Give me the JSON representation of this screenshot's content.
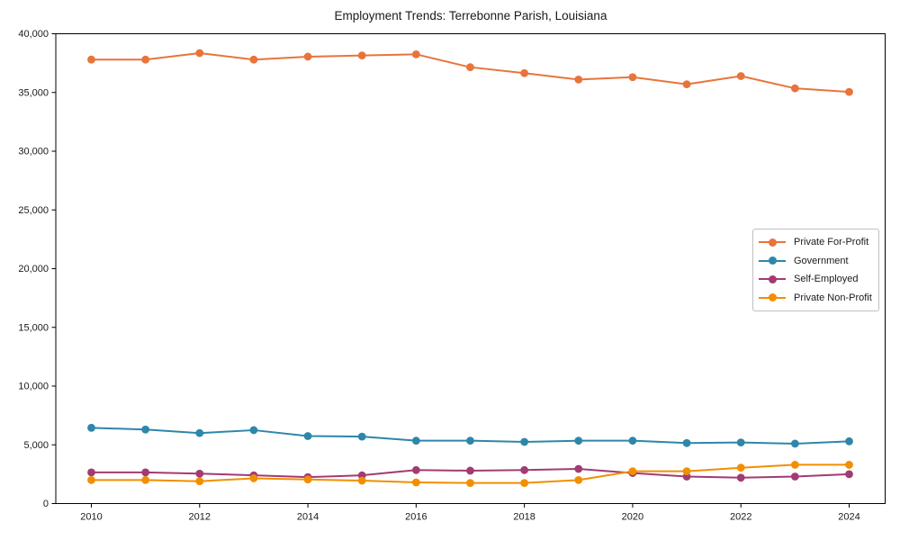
{
  "chart_data": {
    "type": "line",
    "title": "Employment Trends: Terrebonne Parish, Louisiana",
    "xlabel": "",
    "ylabel": "",
    "x": [
      2010,
      2011,
      2012,
      2013,
      2014,
      2015,
      2016,
      2017,
      2018,
      2019,
      2020,
      2021,
      2022,
      2023,
      2024
    ],
    "xtick_labels": [
      "2010",
      "2012",
      "2014",
      "2016",
      "2018",
      "2020",
      "2022",
      "2024"
    ],
    "xticks": [
      2010,
      2012,
      2014,
      2016,
      2018,
      2020,
      2022,
      2024
    ],
    "yticks": [
      0,
      5000,
      10000,
      15000,
      20000,
      25000,
      30000,
      35000,
      40000
    ],
    "ytick_labels": [
      "0",
      "5,000",
      "10,000",
      "15,000",
      "20,000",
      "25,000",
      "30,000",
      "35,000",
      "40,000"
    ],
    "ylim": [
      0,
      40000
    ],
    "xlim_pad_years": 0.657,
    "grid": false,
    "legend_position": "center right",
    "marker": "circle",
    "series": [
      {
        "name": "Private For-Profit",
        "color": "#E8743B",
        "values": [
          37800,
          37800,
          38350,
          37800,
          38050,
          38150,
          38250,
          37150,
          36650,
          36100,
          36300,
          35700,
          36400,
          35350,
          35050
        ]
      },
      {
        "name": "Government",
        "color": "#2E86AB",
        "values": [
          6450,
          6300,
          6000,
          6250,
          5750,
          5700,
          5350,
          5350,
          5250,
          5350,
          5350,
          5150,
          5200,
          5100,
          5300
        ]
      },
      {
        "name": "Self-Employed",
        "color": "#A23B72",
        "values": [
          2650,
          2650,
          2550,
          2400,
          2250,
          2400,
          2850,
          2800,
          2850,
          2950,
          2600,
          2300,
          2200,
          2300,
          2500
        ]
      },
      {
        "name": "Private Non-Profit",
        "color": "#F18F01",
        "values": [
          2000,
          2000,
          1900,
          2150,
          2050,
          1950,
          1800,
          1750,
          1750,
          2000,
          2750,
          2750,
          3050,
          3300,
          3300
        ]
      }
    ]
  }
}
